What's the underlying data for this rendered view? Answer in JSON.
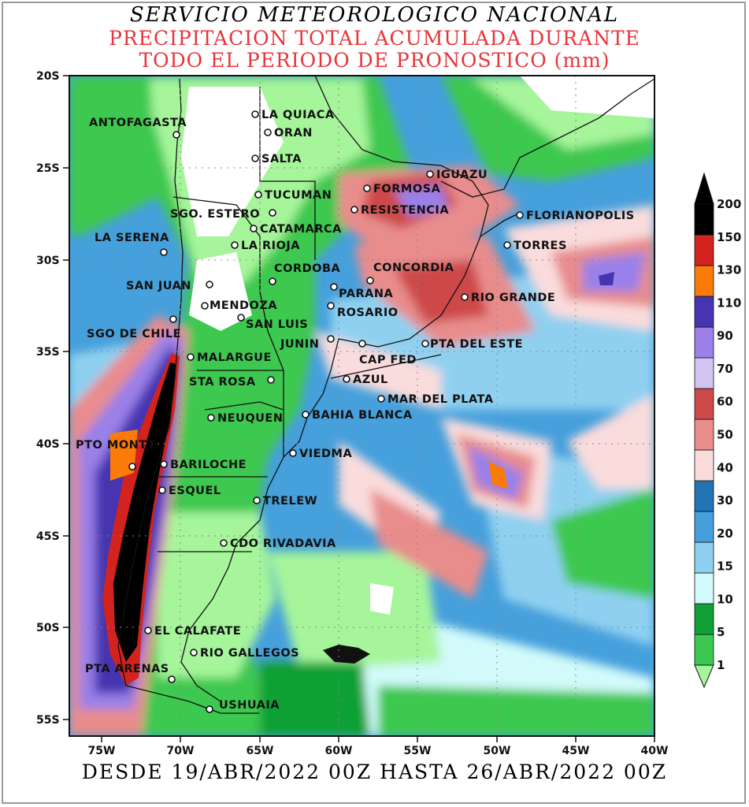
{
  "header": {
    "agency": "SERVICIO METEOROLOGICO NACIONAL",
    "title_line1": "PRECIPITACION TOTAL ACUMULADA DURANTE",
    "title_line2": "TODO EL PERIODO DE PRONOSTICO (mm)"
  },
  "footer": {
    "period": "DESDE 19/ABR/2022 00Z HASTA 26/ABR/2022 00Z"
  },
  "axes": {
    "lat_labels": [
      "20S",
      "25S",
      "30S",
      "35S",
      "40S",
      "45S",
      "50S",
      "55S"
    ],
    "lon_labels": [
      "75W",
      "70W",
      "65W",
      "60W",
      "55W",
      "50W",
      "45W",
      "40W"
    ],
    "lat_range": [
      -56,
      -19.5
    ],
    "lon_range": [
      -77,
      -40
    ]
  },
  "colorbar": {
    "levels": [
      "1",
      "5",
      "10",
      "15",
      "20",
      "30",
      "40",
      "50",
      "60",
      "70",
      "90",
      "110",
      "130",
      "150",
      "200"
    ],
    "colors": [
      "#a6f59b",
      "#3cc850",
      "#11a036",
      "#d2fafa",
      "#8fd0f0",
      "#46a0dc",
      "#2173b4",
      "#fadcdc",
      "#e88c8c",
      "#cd4a4a",
      "#d4c4f4",
      "#9a80e8",
      "#4634b0",
      "#fa7b0a",
      "#d2231e",
      "#000000"
    ]
  },
  "cities": [
    {
      "name": "LA QUIACA"
    },
    {
      "name": "ORAN"
    },
    {
      "name": "ANTOFAGASTA"
    },
    {
      "name": "SALTA"
    },
    {
      "name": "IGUAZU"
    },
    {
      "name": "FORMOSA"
    },
    {
      "name": "TUCUMAN"
    },
    {
      "name": "RESISTENCIA"
    },
    {
      "name": "SGO. ESTERO"
    },
    {
      "name": "FLORIANOPOLIS"
    },
    {
      "name": "CATAMARCA"
    },
    {
      "name": "LA SERENA"
    },
    {
      "name": "LA RIOJA"
    },
    {
      "name": "TORRES"
    },
    {
      "name": "CORDOBA"
    },
    {
      "name": "CONCORDIA"
    },
    {
      "name": "SAN JUAN"
    },
    {
      "name": "PARANA"
    },
    {
      "name": "RIO GRANDE"
    },
    {
      "name": "MENDOZA"
    },
    {
      "name": "ROSARIO"
    },
    {
      "name": "SAN LUIS"
    },
    {
      "name": "SGO DE CHILE"
    },
    {
      "name": "JUNIN"
    },
    {
      "name": "PTA DEL ESTE"
    },
    {
      "name": "MALARGUE"
    },
    {
      "name": "CAP FED"
    },
    {
      "name": "STA ROSA"
    },
    {
      "name": "AZUL"
    },
    {
      "name": "MAR DEL PLATA"
    },
    {
      "name": "NEUQUEN"
    },
    {
      "name": "BAHIA BLANCA"
    },
    {
      "name": "PTO MONTT"
    },
    {
      "name": "VIEDMA"
    },
    {
      "name": "BARILOCHE"
    },
    {
      "name": "ESQUEL"
    },
    {
      "name": "TRELEW"
    },
    {
      "name": "CDO RIVADAVIA"
    },
    {
      "name": "EL CALAFATE"
    },
    {
      "name": "RIO GALLEGOS"
    },
    {
      "name": "PTA ARENAS"
    },
    {
      "name": "USHUAIA"
    }
  ]
}
